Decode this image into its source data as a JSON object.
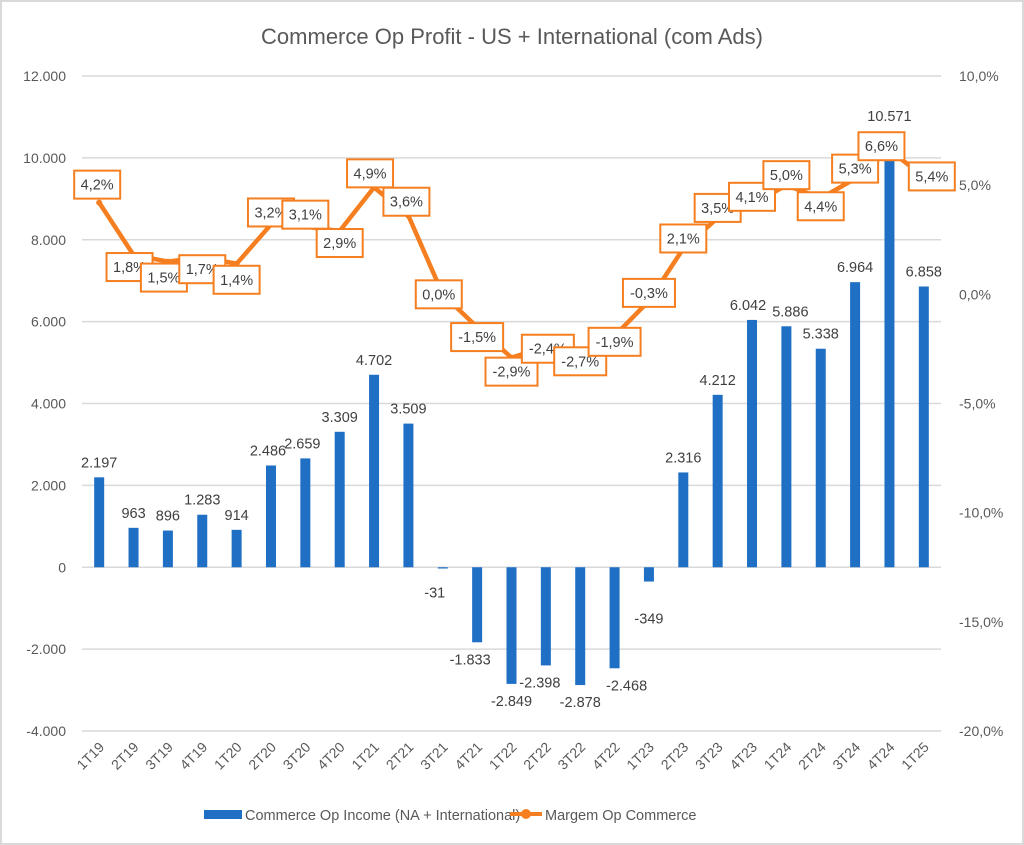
{
  "chart_data": {
    "type": "bar+line",
    "title": "Commerce Op Profit - US + International (com Ads)",
    "categories": [
      "1T19",
      "2T19",
      "3T19",
      "4T19",
      "1T20",
      "2T20",
      "3T20",
      "4T20",
      "1T21",
      "2T21",
      "3T21",
      "4T21",
      "1T22",
      "2T22",
      "3T22",
      "4T22",
      "1T23",
      "2T23",
      "3T23",
      "4T23",
      "1T24",
      "2T24",
      "3T24",
      "4T24",
      "1T25"
    ],
    "series": [
      {
        "name": "Commerce Op Income (NA + International)",
        "type": "bar",
        "axis": "left",
        "color": "#1f6fc5",
        "values": [
          2197,
          963,
          896,
          1283,
          914,
          2486,
          2659,
          3309,
          4702,
          3509,
          -31,
          -1833,
          -2849,
          -2398,
          -2878,
          -2468,
          -349,
          2316,
          4212,
          6042,
          5886,
          5338,
          6964,
          10571,
          6858
        ],
        "labels": [
          "2.197",
          "963",
          "896",
          "1.283",
          "914",
          "2.486",
          "2.659",
          "3.309",
          "4.702",
          "3.509",
          "-31",
          "-1.833",
          "-2.849",
          "-2.398",
          "-2.878",
          "-2.468",
          "-349",
          "2.316",
          "4.212",
          "6.042",
          "5.886",
          "5.338",
          "6.964",
          "10.571",
          "6.858"
        ]
      },
      {
        "name": "Margem Op Commerce",
        "type": "line",
        "axis": "right",
        "color": "#f57f20",
        "values": [
          4.2,
          1.8,
          1.5,
          1.7,
          1.4,
          3.2,
          3.1,
          2.9,
          4.9,
          3.6,
          0.0,
          -1.5,
          -2.9,
          -2.4,
          -2.7,
          -1.9,
          -0.3,
          2.1,
          3.5,
          4.1,
          5.0,
          4.4,
          5.3,
          6.6,
          5.4
        ],
        "labels": [
          "4,2%",
          "1,8%",
          "1,5%",
          "1,7%",
          "1,4%",
          "3,2%",
          "3,1%",
          "2,9%",
          "4,9%",
          "3,6%",
          "0,0%",
          "-1,5%",
          "-2,9%",
          "-2,4%",
          "-2,7%",
          "-1,9%",
          "-0,3%",
          "2,1%",
          "3,5%",
          "4,1%",
          "5,0%",
          "4,4%",
          "5,3%",
          "6,6%",
          "5,4%"
        ]
      }
    ],
    "left_axis": {
      "ylim": [
        -4000,
        12000
      ],
      "ticks": [
        12000,
        10000,
        8000,
        6000,
        4000,
        2000,
        0,
        -2000,
        -4000
      ],
      "tick_labels": [
        "12.000",
        "10.000",
        "8.000",
        "6.000",
        "4.000",
        "2.000",
        "0",
        "-2.000",
        "-4.000"
      ]
    },
    "right_axis": {
      "ylim": [
        -20,
        10
      ],
      "ticks": [
        10,
        5,
        0,
        -5,
        -10,
        -15,
        -20
      ],
      "tick_labels": [
        "10,0%",
        "5,0%",
        "0,0%",
        "-5,0%",
        "-10,0%",
        "-15,0%",
        "-20,0%"
      ]
    },
    "grid": true,
    "legend": "bottom",
    "xlabel": "",
    "ylabel": ""
  }
}
